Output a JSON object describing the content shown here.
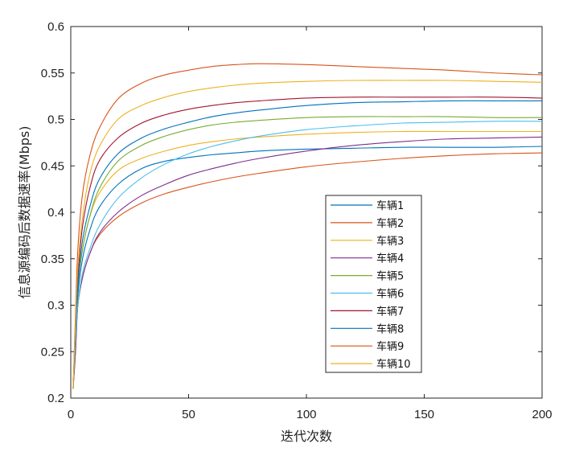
{
  "chart_data": {
    "type": "line",
    "title": "",
    "xlabel": "迭代次数",
    "ylabel": "信息源编码后数据速率(Mbps)",
    "xlim": [
      0,
      200
    ],
    "ylim": [
      0.2,
      0.6
    ],
    "xticks": [
      0,
      50,
      100,
      150,
      200
    ],
    "yticks": [
      0.2,
      0.25,
      0.3,
      0.35,
      0.4,
      0.45,
      0.5,
      0.55,
      0.6
    ],
    "ytick_labels": [
      "0.2",
      "0.25",
      "0.3",
      "0.35",
      "0.4",
      "0.45",
      "0.5",
      "0.55",
      "0.6"
    ],
    "legend_position": "center-right",
    "x": [
      1,
      2,
      3,
      5,
      8,
      12,
      20,
      30,
      40,
      50,
      60,
      70,
      80,
      100,
      120,
      140,
      160,
      180,
      200
    ],
    "series": [
      {
        "name": "车辆1",
        "color": "#0072BD",
        "values": [
          0.21,
          0.26,
          0.31,
          0.35,
          0.38,
          0.405,
          0.43,
          0.447,
          0.455,
          0.459,
          0.462,
          0.464,
          0.466,
          0.468,
          0.469,
          0.47,
          0.47,
          0.47,
          0.471
        ]
      },
      {
        "name": "车辆2",
        "color": "#D95319",
        "values": [
          0.21,
          0.25,
          0.3,
          0.33,
          0.355,
          0.375,
          0.395,
          0.41,
          0.42,
          0.427,
          0.433,
          0.438,
          0.442,
          0.449,
          0.454,
          0.458,
          0.461,
          0.463,
          0.464
        ]
      },
      {
        "name": "车辆3",
        "color": "#EDB120",
        "values": [
          0.21,
          0.27,
          0.32,
          0.36,
          0.395,
          0.42,
          0.445,
          0.458,
          0.466,
          0.472,
          0.476,
          0.479,
          0.481,
          0.484,
          0.486,
          0.487,
          0.487,
          0.487,
          0.487
        ]
      },
      {
        "name": "车辆4",
        "color": "#7E2F8E",
        "values": [
          0.21,
          0.25,
          0.3,
          0.33,
          0.355,
          0.377,
          0.4,
          0.418,
          0.43,
          0.44,
          0.447,
          0.453,
          0.458,
          0.466,
          0.472,
          0.476,
          0.479,
          0.48,
          0.481
        ]
      },
      {
        "name": "车辆5",
        "color": "#77AC30",
        "values": [
          0.21,
          0.27,
          0.32,
          0.36,
          0.395,
          0.425,
          0.455,
          0.472,
          0.482,
          0.489,
          0.494,
          0.497,
          0.499,
          0.502,
          0.503,
          0.503,
          0.503,
          0.502,
          0.502
        ]
      },
      {
        "name": "车辆6",
        "color": "#4DBEEE",
        "values": [
          0.21,
          0.26,
          0.3,
          0.335,
          0.36,
          0.385,
          0.415,
          0.437,
          0.452,
          0.463,
          0.471,
          0.477,
          0.482,
          0.489,
          0.493,
          0.496,
          0.497,
          0.498,
          0.498
        ]
      },
      {
        "name": "车辆7",
        "color": "#A2142F",
        "values": [
          0.21,
          0.28,
          0.33,
          0.385,
          0.425,
          0.455,
          0.48,
          0.496,
          0.505,
          0.511,
          0.515,
          0.518,
          0.52,
          0.523,
          0.524,
          0.524,
          0.524,
          0.524,
          0.523
        ]
      },
      {
        "name": "车辆8",
        "color": "#0072BD",
        "values": [
          0.21,
          0.27,
          0.32,
          0.37,
          0.405,
          0.435,
          0.463,
          0.48,
          0.49,
          0.497,
          0.503,
          0.507,
          0.51,
          0.515,
          0.518,
          0.519,
          0.52,
          0.52,
          0.52
        ]
      },
      {
        "name": "车辆9",
        "color": "#D95319",
        "values": [
          0.21,
          0.29,
          0.36,
          0.42,
          0.46,
          0.49,
          0.522,
          0.539,
          0.548,
          0.553,
          0.557,
          0.559,
          0.56,
          0.559,
          0.557,
          0.555,
          0.553,
          0.55,
          0.548
        ]
      },
      {
        "name": "车辆10",
        "color": "#EDB120",
        "values": [
          0.21,
          0.28,
          0.34,
          0.395,
          0.44,
          0.47,
          0.5,
          0.515,
          0.524,
          0.53,
          0.534,
          0.537,
          0.539,
          0.541,
          0.542,
          0.542,
          0.542,
          0.541,
          0.54
        ]
      }
    ]
  }
}
